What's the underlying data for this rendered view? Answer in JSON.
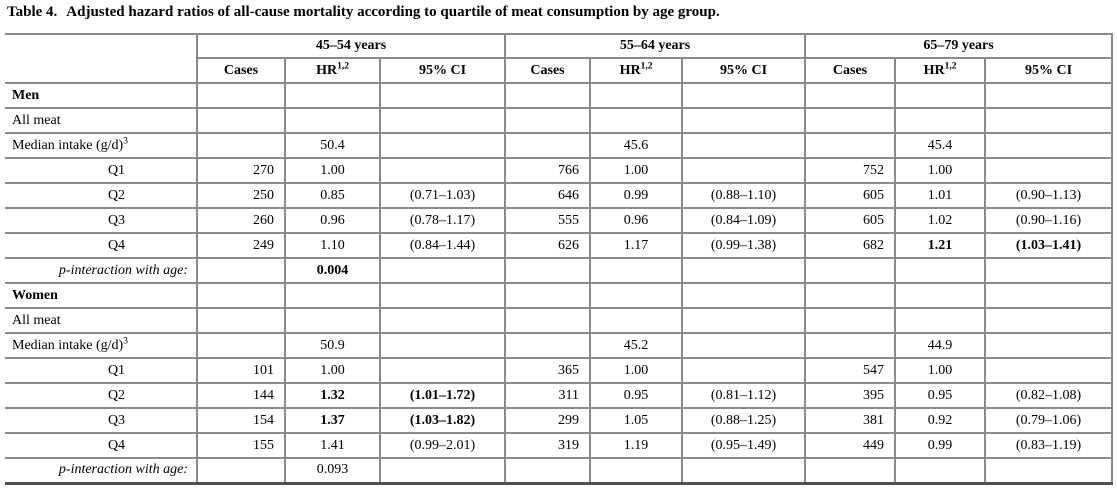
{
  "title": {
    "label": "Table 4.",
    "text": "Adjusted hazard ratios of all-cause mortality according to quartile of meat consumption by age group."
  },
  "colors": {
    "background": "#ffffff",
    "text": "#000000",
    "grid_line": "#8a8a8a",
    "bottom_rule": "#4f4f4f"
  },
  "header": {
    "groups": [
      {
        "label": "45–54 years"
      },
      {
        "label": "55–64 years"
      },
      {
        "label": "65–79 years"
      }
    ],
    "sub": {
      "cases": "Cases",
      "hr": "HR",
      "hr_sup": "1,2",
      "ci": "95% CI"
    }
  },
  "rows": [
    {
      "type": "section",
      "label": "Men",
      "cells": [
        [
          "",
          0
        ],
        [
          "",
          0
        ],
        [
          "",
          0
        ],
        [
          "",
          0
        ],
        [
          "",
          0
        ],
        [
          "",
          0
        ],
        [
          "",
          0
        ],
        [
          "",
          0
        ],
        [
          "",
          0
        ]
      ]
    },
    {
      "type": "plain",
      "label": "All meat",
      "cells": [
        [
          "",
          0
        ],
        [
          "",
          0
        ],
        [
          "",
          0
        ],
        [
          "",
          0
        ],
        [
          "",
          0
        ],
        [
          "",
          0
        ],
        [
          "",
          0
        ],
        [
          "",
          0
        ],
        [
          "",
          0
        ]
      ]
    },
    {
      "type": "median",
      "label": "Median intake (g/d)",
      "sup": "3",
      "cells": [
        [
          "",
          0
        ],
        [
          "50.4",
          0
        ],
        [
          "",
          0
        ],
        [
          "",
          0
        ],
        [
          "45.6",
          0
        ],
        [
          "",
          0
        ],
        [
          "",
          0
        ],
        [
          "45.4",
          0
        ],
        [
          "",
          0
        ]
      ]
    },
    {
      "type": "quartile",
      "label": "Q1",
      "cells": [
        [
          "270",
          0
        ],
        [
          "1.00",
          0
        ],
        [
          "",
          0
        ],
        [
          "766",
          0
        ],
        [
          "1.00",
          0
        ],
        [
          "",
          0
        ],
        [
          "752",
          0
        ],
        [
          "1.00",
          0
        ],
        [
          "",
          0
        ]
      ]
    },
    {
      "type": "quartile",
      "label": "Q2",
      "cells": [
        [
          "250",
          0
        ],
        [
          "0.85",
          0
        ],
        [
          "(0.71–1.03)",
          0
        ],
        [
          "646",
          0
        ],
        [
          "0.99",
          0
        ],
        [
          "(0.88–1.10)",
          0
        ],
        [
          "605",
          0
        ],
        [
          "1.01",
          0
        ],
        [
          "(0.90–1.13)",
          0
        ]
      ]
    },
    {
      "type": "quartile",
      "label": "Q3",
      "cells": [
        [
          "260",
          0
        ],
        [
          "0.96",
          0
        ],
        [
          "(0.78–1.17)",
          0
        ],
        [
          "555",
          0
        ],
        [
          "0.96",
          0
        ],
        [
          "(0.84–1.09)",
          0
        ],
        [
          "605",
          0
        ],
        [
          "1.02",
          0
        ],
        [
          "(0.90–1.16)",
          0
        ]
      ]
    },
    {
      "type": "quartile",
      "label": "Q4",
      "cells": [
        [
          "249",
          0
        ],
        [
          "1.10",
          0
        ],
        [
          "(0.84–1.44)",
          0
        ],
        [
          "626",
          0
        ],
        [
          "1.17",
          0
        ],
        [
          "(0.99–1.38)",
          0
        ],
        [
          "682",
          0
        ],
        [
          "1.21",
          1
        ],
        [
          "(1.03–1.41)",
          1
        ]
      ]
    },
    {
      "type": "pint",
      "label": "p-interaction with age:",
      "cells": [
        [
          "",
          0
        ],
        [
          "0.004",
          1
        ],
        [
          "",
          0
        ],
        [
          "",
          0
        ],
        [
          "",
          0
        ],
        [
          "",
          0
        ],
        [
          "",
          0
        ],
        [
          "",
          0
        ],
        [
          "",
          0
        ]
      ]
    },
    {
      "type": "section",
      "label": "Women",
      "cells": [
        [
          "",
          0
        ],
        [
          "",
          0
        ],
        [
          "",
          0
        ],
        [
          "",
          0
        ],
        [
          "",
          0
        ],
        [
          "",
          0
        ],
        [
          "",
          0
        ],
        [
          "",
          0
        ],
        [
          "",
          0
        ]
      ]
    },
    {
      "type": "plain",
      "label": "All meat",
      "cells": [
        [
          "",
          0
        ],
        [
          "",
          0
        ],
        [
          "",
          0
        ],
        [
          "",
          0
        ],
        [
          "",
          0
        ],
        [
          "",
          0
        ],
        [
          "",
          0
        ],
        [
          "",
          0
        ],
        [
          "",
          0
        ]
      ]
    },
    {
      "type": "median",
      "label": "Median intake (g/d)",
      "sup": "3",
      "cells": [
        [
          "",
          0
        ],
        [
          "50.9",
          0
        ],
        [
          "",
          0
        ],
        [
          "",
          0
        ],
        [
          "45.2",
          0
        ],
        [
          "",
          0
        ],
        [
          "",
          0
        ],
        [
          "44.9",
          0
        ],
        [
          "",
          0
        ]
      ]
    },
    {
      "type": "quartile",
      "label": "Q1",
      "cells": [
        [
          "101",
          0
        ],
        [
          "1.00",
          0
        ],
        [
          "",
          0
        ],
        [
          "365",
          0
        ],
        [
          "1.00",
          0
        ],
        [
          "",
          0
        ],
        [
          "547",
          0
        ],
        [
          "1.00",
          0
        ],
        [
          "",
          0
        ]
      ]
    },
    {
      "type": "quartile",
      "label": "Q2",
      "cells": [
        [
          "144",
          0
        ],
        [
          "1.32",
          1
        ],
        [
          "(1.01–1.72)",
          1
        ],
        [
          "311",
          0
        ],
        [
          "0.95",
          0
        ],
        [
          "(0.81–1.12)",
          0
        ],
        [
          "395",
          0
        ],
        [
          "0.95",
          0
        ],
        [
          "(0.82–1.08)",
          0
        ]
      ]
    },
    {
      "type": "quartile",
      "label": "Q3",
      "cells": [
        [
          "154",
          0
        ],
        [
          "1.37",
          1
        ],
        [
          "(1.03–1.82)",
          1
        ],
        [
          "299",
          0
        ],
        [
          "1.05",
          0
        ],
        [
          "(0.88–1.25)",
          0
        ],
        [
          "381",
          0
        ],
        [
          "0.92",
          0
        ],
        [
          "(0.79–1.06)",
          0
        ]
      ]
    },
    {
      "type": "quartile",
      "label": "Q4",
      "cells": [
        [
          "155",
          0
        ],
        [
          "1.41",
          0
        ],
        [
          "(0.99–2.01)",
          0
        ],
        [
          "319",
          0
        ],
        [
          "1.19",
          0
        ],
        [
          "(0.95–1.49)",
          0
        ],
        [
          "449",
          0
        ],
        [
          "0.99",
          0
        ],
        [
          "(0.83–1.19)",
          0
        ]
      ]
    },
    {
      "type": "pint",
      "label": "p-interaction with age:",
      "cells": [
        [
          "",
          0
        ],
        [
          "0.093",
          0
        ],
        [
          "",
          0
        ],
        [
          "",
          0
        ],
        [
          "",
          0
        ],
        [
          "",
          0
        ],
        [
          "",
          0
        ],
        [
          "",
          0
        ],
        [
          "",
          0
        ]
      ]
    }
  ]
}
